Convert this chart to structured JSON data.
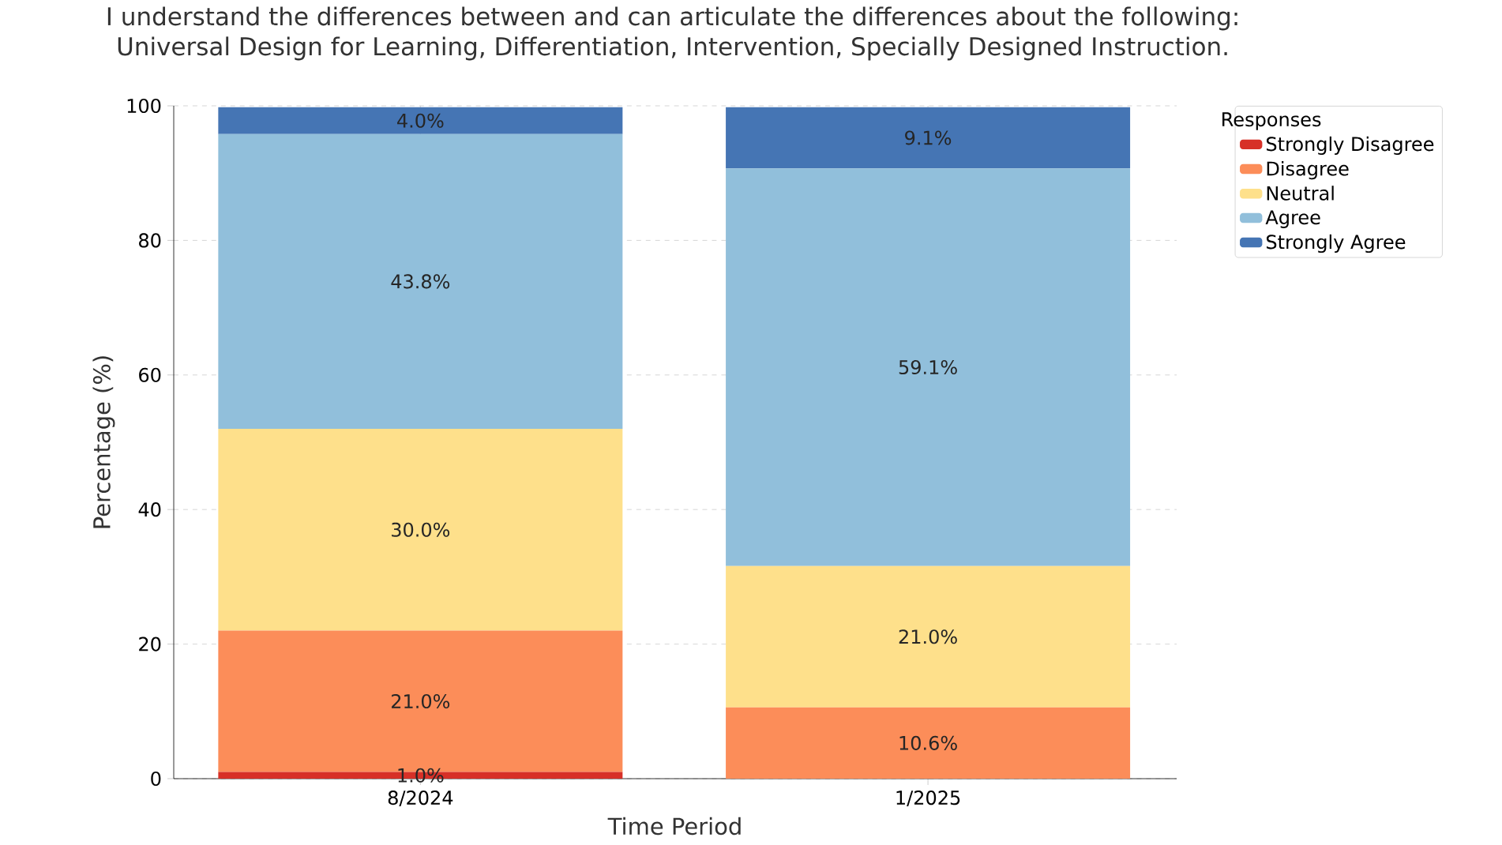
{
  "chart_data": {
    "type": "bar",
    "stacked": true,
    "title": "I understand the differences between and can articulate the differences about the following:\nUniversal Design for Learning, Differentiation, Intervention, Specially Designed Instruction.",
    "xlabel": "Time Period",
    "ylabel": "Percentage (%)",
    "legend_title": "Responses",
    "categories": [
      "8/2024",
      "1/2025"
    ],
    "series": [
      {
        "name": "Strongly Disagree",
        "color": "#d73027",
        "values": [
          1.0,
          0
        ],
        "value_labels": [
          "1.0%",
          null
        ]
      },
      {
        "name": "Disagree",
        "color": "#fc8d59",
        "values": [
          21.0,
          10.6
        ],
        "value_labels": [
          "21.0%",
          "10.6%"
        ]
      },
      {
        "name": "Neutral",
        "color": "#fee08b",
        "values": [
          30.0,
          21.0
        ],
        "value_labels": [
          "30.0%",
          "21.0%"
        ]
      },
      {
        "name": "Agree",
        "color": "#91bfdb",
        "values": [
          43.8,
          59.1
        ],
        "value_labels": [
          "43.8%",
          "59.1%"
        ]
      },
      {
        "name": "Strongly Agree",
        "color": "#4575b4",
        "values": [
          4.0,
          9.1
        ],
        "value_labels": [
          "4.0%",
          "9.1%"
        ]
      }
    ],
    "ylim": [
      0,
      100
    ],
    "yticks": [
      0,
      20,
      40,
      60,
      80,
      100
    ],
    "grid": true,
    "legend": "top right"
  }
}
